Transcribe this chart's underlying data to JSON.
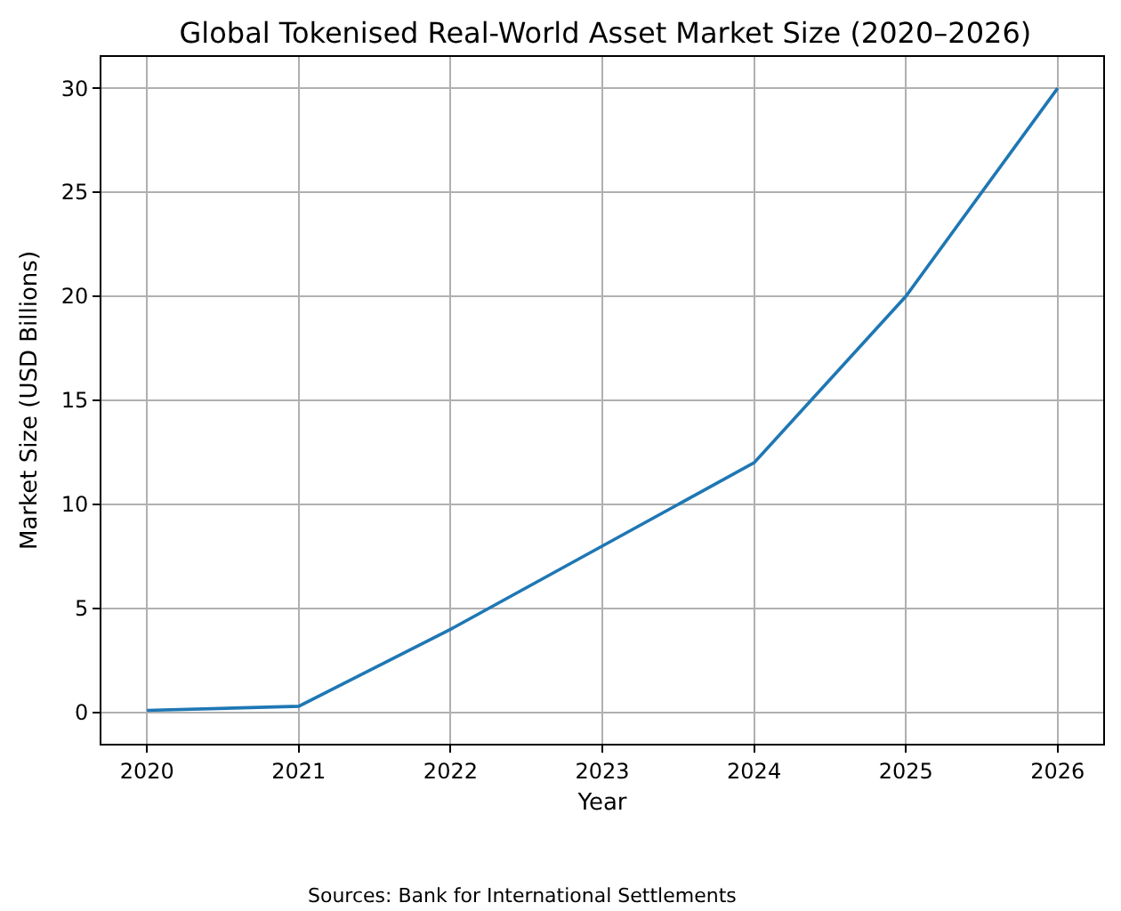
{
  "chart_data": {
    "type": "line",
    "title": "Global Tokenised Real-World Asset Market Size (2020–2026)",
    "xlabel": "Year",
    "ylabel": "Market Size (USD Billions)",
    "x": [
      2020,
      2021,
      2022,
      2023,
      2024,
      2025,
      2026
    ],
    "series": [
      {
        "color": "#1f77b4",
        "values": [
          0.1,
          0.3,
          4,
          8,
          12,
          20,
          30
        ]
      }
    ],
    "xlim": [
      2019.7,
      2026.3
    ],
    "xticks": [
      2020,
      2021,
      2022,
      2023,
      2024,
      2025,
      2026
    ],
    "ylim": [
      -1.5,
      31.5
    ],
    "yticks": [
      0,
      5,
      10,
      15,
      20,
      25,
      30
    ],
    "grid": true,
    "marker": "none",
    "line_style": "solid",
    "annotations": [
      "Sources: Bank for International Settlements"
    ]
  }
}
